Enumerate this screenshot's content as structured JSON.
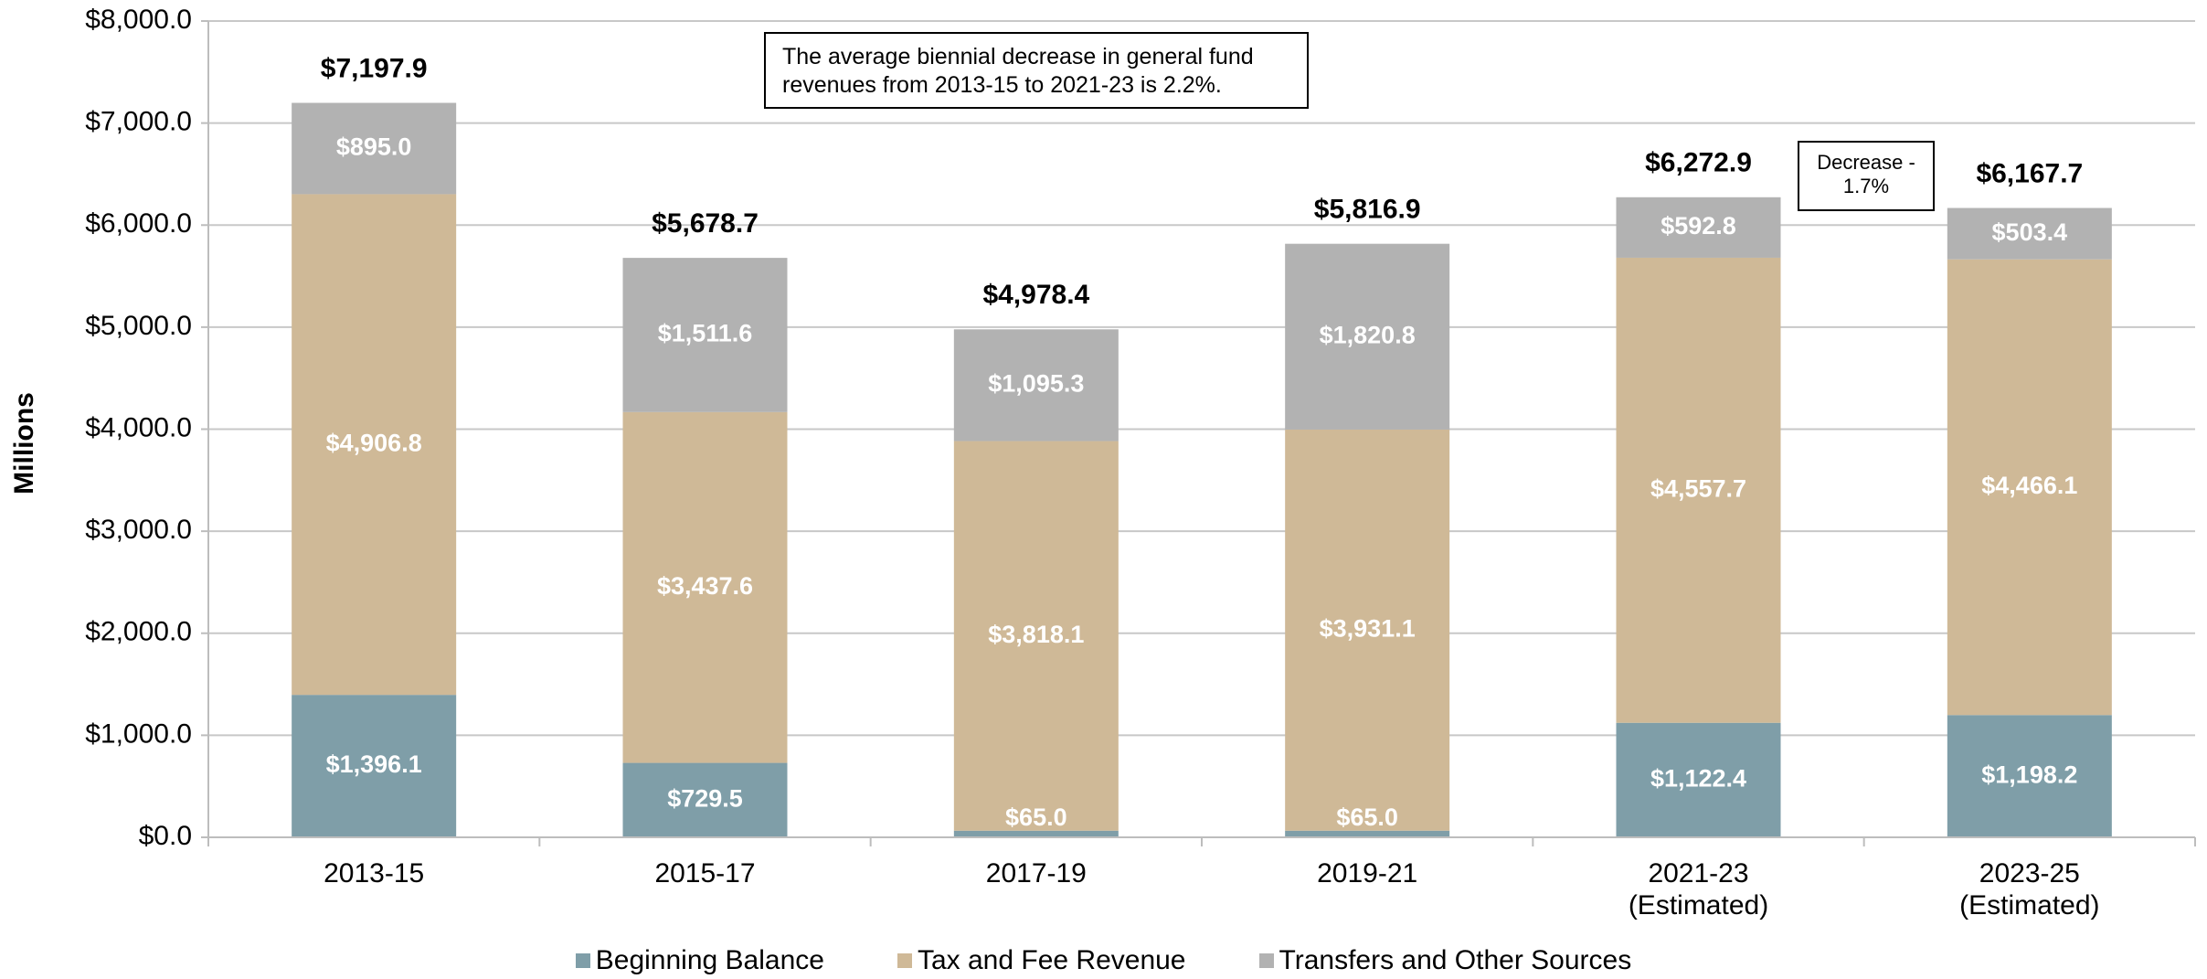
{
  "chart_data": {
    "type": "stacked_bar",
    "y_axis_label": "Millions",
    "categories": [
      "2013-15",
      "2015-17",
      "2017-19",
      "2019-21",
      "2021-23\n(Estimated)",
      "2023-25\n(Estimated)"
    ],
    "series": [
      {
        "name": "Beginning Balance",
        "color": "#7f9ea8",
        "values": [
          1396.1,
          729.5,
          65.0,
          65.0,
          1122.4,
          1198.2
        ],
        "value_labels": [
          "$1,396.1",
          "$729.5",
          "$65.0",
          "$65.0",
          "$1,122.4",
          "$1,198.2"
        ]
      },
      {
        "name": "Tax and Fee Revenue",
        "color": "#cfb997",
        "values": [
          4906.8,
          3437.6,
          3818.1,
          3931.1,
          4557.7,
          4466.1
        ],
        "value_labels": [
          "$4,906.8",
          "$3,437.6",
          "$3,818.1",
          "$3,931.1",
          "$4,557.7",
          "$4,466.1"
        ]
      },
      {
        "name": "Transfers and Other Sources",
        "color": "#b2b2b2",
        "values": [
          895.0,
          1511.6,
          1095.3,
          1820.8,
          592.8,
          503.4
        ],
        "value_labels": [
          "$895.0",
          "$1,511.6",
          "$1,095.3",
          "$1,820.8",
          "$592.8",
          "$503.4"
        ]
      }
    ],
    "totals": [
      7197.9,
      5678.7,
      4978.4,
      5816.9,
      6272.9,
      6167.7
    ],
    "total_labels": [
      "$7,197.9",
      "$5,678.7",
      "$4,978.4",
      "$5,816.9",
      "$6,272.9",
      "$6,167.7"
    ],
    "ylim": [
      0,
      8000
    ],
    "yticks": [
      {
        "value": 0,
        "label": "$0.0"
      },
      {
        "value": 1000,
        "label": "$1,000.0"
      },
      {
        "value": 2000,
        "label": "$2,000.0"
      },
      {
        "value": 3000,
        "label": "$3,000.0"
      },
      {
        "value": 4000,
        "label": "$4,000.0"
      },
      {
        "value": 5000,
        "label": "$5,000.0"
      },
      {
        "value": 6000,
        "label": "$6,000.0"
      },
      {
        "value": 7000,
        "label": "$7,000.0"
      },
      {
        "value": 8000,
        "label": "$8,000.0"
      }
    ],
    "grid": true,
    "legend": "bottom",
    "annotations": [
      "The average biennial decrease in general fund revenues from 2013-15 to 2021-23 is 2.2%.",
      "Decrease - 1.7%"
    ]
  }
}
